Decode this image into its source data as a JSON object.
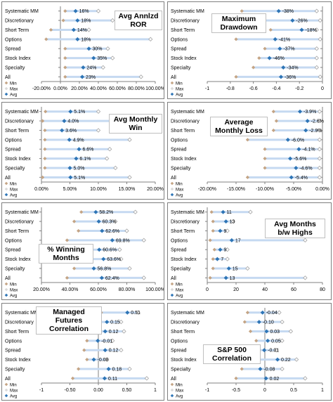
{
  "legend": {
    "min": "Min",
    "max": "Max",
    "avg": "Avg"
  },
  "colors": {
    "band": "#c5d9f1",
    "min": "#c4a484",
    "max": "#d0d0d0",
    "avg": "#2e75b6",
    "axis": "#808080"
  },
  "chart_data": [
    {
      "type": "dot-range",
      "title": "Avg Annlzd ROR",
      "categories": [
        "Systematic MM",
        "Discretionary",
        "Short Term",
        "Options",
        "Spread",
        "Stock Index",
        "Specialty",
        "All"
      ],
      "series": [
        {
          "name": "Min",
          "values": [
            0.05,
            0.03,
            -0.1,
            -0.15,
            0.05,
            0.05,
            0.05,
            0.05
          ]
        },
        {
          "name": "Max",
          "values": [
            0.4,
            0.55,
            0.3,
            0.95,
            0.5,
            0.55,
            0.45,
            0.85
          ]
        },
        {
          "name": "Avg",
          "values": [
            0.16,
            0.18,
            0.14,
            0.18,
            0.3,
            0.35,
            0.24,
            0.23
          ]
        }
      ],
      "labels": [
        "16%",
        "18%",
        "14%",
        "18%",
        "30%",
        "35%",
        "24%",
        "23%"
      ],
      "xlim": [
        -0.2,
        1.0
      ],
      "ticks": [
        "-20.00%",
        "0.00%",
        "20.00%",
        "40.00%",
        "60.00%",
        "80.00%",
        "100.00%"
      ]
    },
    {
      "type": "dot-range",
      "title": "Maximum Drawdown",
      "categories": [
        "Systematic MM",
        "Discretionary",
        "Short Term",
        "Options",
        "Spread",
        "Stock Index",
        "Specialty",
        "All"
      ],
      "series": [
        {
          "name": "Min",
          "values": [
            -0.7,
            -0.6,
            -0.45,
            -0.75,
            -0.5,
            -0.55,
            -0.6,
            -0.75
          ]
        },
        {
          "name": "Max",
          "values": [
            -0.05,
            -0.02,
            -0.05,
            -0.02,
            -0.05,
            -0.05,
            -0.05,
            -0.02
          ]
        },
        {
          "name": "Avg",
          "values": [
            -0.38,
            -0.26,
            -0.18,
            -0.41,
            -0.37,
            -0.46,
            -0.34,
            -0.36
          ]
        }
      ],
      "labels": [
        "-38%",
        "-26%",
        "-18%",
        "-41%",
        "-37%",
        "-46%",
        "-34%",
        "-36%"
      ],
      "xlim": [
        -1,
        0
      ],
      "ticks": [
        "-1",
        "-0.8",
        "-0.6",
        "-0.4",
        "-0.2",
        "0"
      ]
    },
    {
      "type": "dot-range",
      "title": "Avg Monthly Win",
      "categories": [
        "Systematic MM",
        "Discretionary",
        "Short Term",
        "Options",
        "Spread",
        "Stock Index",
        "Specialty",
        "All"
      ],
      "series": [
        {
          "name": "Min",
          "values": [
            0.007,
            0.002,
            0.006,
            0.006,
            0.006,
            0.006,
            0.006,
            0.002
          ]
        },
        {
          "name": "Max",
          "values": [
            0.1,
            0.13,
            0.1,
            0.155,
            0.12,
            0.115,
            0.13,
            0.155
          ]
        },
        {
          "name": "Avg",
          "values": [
            0.051,
            0.04,
            0.036,
            0.049,
            0.066,
            0.061,
            0.05,
            0.051
          ]
        }
      ],
      "labels": [
        "5.1%",
        "4.0%",
        "3.6%",
        "4.9%",
        "6.6%",
        "6.1%",
        "5.0%",
        "5.1%"
      ],
      "xlim": [
        0,
        0.2
      ],
      "ticks": [
        "0.00%",
        "5.00%",
        "10.00%",
        "15.00%",
        "20.00%"
      ]
    },
    {
      "type": "dot-range",
      "title": "Average Monthly Loss",
      "categories": [
        "Systematic MM",
        "Discretionary",
        "Short Term",
        "Options",
        "Spread",
        "Stock Index",
        "Specialty",
        "All"
      ],
      "series": [
        {
          "name": "Min",
          "values": [
            -0.085,
            -0.08,
            -0.085,
            -0.13,
            -0.1,
            -0.1,
            -0.1,
            -0.13
          ]
        },
        {
          "name": "Max",
          "values": [
            -0.005,
            -0.005,
            -0.005,
            -0.005,
            -0.005,
            -0.005,
            -0.005,
            -0.005
          ]
        },
        {
          "name": "Avg",
          "values": [
            -0.039,
            -0.026,
            -0.029,
            -0.06,
            -0.041,
            -0.056,
            -0.046,
            -0.054
          ]
        }
      ],
      "labels": [
        "-3.9%",
        "-2.6%",
        "-2.9%",
        "-6.0%",
        "-4.1%",
        "-5.6%",
        "-4.6%",
        "-5.4%"
      ],
      "xlim": [
        -0.2,
        0
      ],
      "ticks": [
        "-20.00%",
        "-15.00%",
        "-10.00%",
        "-5.00%",
        "0.00%"
      ]
    },
    {
      "type": "dot-range",
      "title": "% Winning Months",
      "categories": [
        "Systematic MM",
        "Discretionary",
        "Short Term",
        "Options",
        "Spread",
        "Stock Index",
        "Specialty",
        "All"
      ],
      "series": [
        {
          "name": "Min",
          "values": [
            0.48,
            0.43,
            0.46,
            0.38,
            0.44,
            0.45,
            0.43,
            0.38
          ]
        },
        {
          "name": "Max",
          "values": [
            0.86,
            0.72,
            0.8,
            0.92,
            0.75,
            0.76,
            0.82,
            0.92
          ]
        },
        {
          "name": "Avg",
          "values": [
            0.582,
            0.603,
            0.626,
            0.698,
            0.606,
            0.636,
            0.568,
            0.624
          ]
        }
      ],
      "labels": [
        "58.2%",
        "60.3%",
        "62.6%",
        "69.8%",
        "60.6%",
        "63.6%",
        "56.8%",
        "62.4%"
      ],
      "xlim": [
        0.2,
        1.0
      ],
      "ticks": [
        "20.00%",
        "40.00%",
        "60.00%",
        "80.00%",
        "100.00%"
      ]
    },
    {
      "type": "dot-range",
      "title": "Avg Months b/w Highs",
      "categories": [
        "Systematic MM",
        "Discretionary",
        "Short Term",
        "Options",
        "Spread",
        "Stock Index",
        "Specialty",
        "All"
      ],
      "series": [
        {
          "name": "Min",
          "values": [
            3,
            4,
            4,
            2,
            5,
            4,
            4,
            2
          ]
        },
        {
          "name": "Max",
          "values": [
            30,
            18,
            14,
            68,
            14,
            14,
            28,
            68
          ]
        },
        {
          "name": "Avg",
          "values": [
            11,
            13,
            9,
            17,
            9,
            7,
            15,
            13
          ]
        }
      ],
      "labels": [
        "11",
        "13",
        "9",
        "17",
        "9",
        "7",
        "15",
        "13"
      ],
      "xlim": [
        0,
        80
      ],
      "ticks": [
        "0",
        "20",
        "40",
        "60",
        "80"
      ]
    },
    {
      "type": "dot-range",
      "title": "Managed Futures Correlation",
      "categories": [
        "Systematic MM",
        "Discretionary",
        "Short Term",
        "Options",
        "Spread",
        "Stock Index",
        "Specialty",
        "All"
      ],
      "series": [
        {
          "name": "Min",
          "values": [
            0.05,
            -0.1,
            -0.15,
            -0.2,
            -0.25,
            -0.2,
            -0.35,
            -0.45
          ]
        },
        {
          "name": "Max",
          "values": [
            0.7,
            0.4,
            0.45,
            0.25,
            0.4,
            0.15,
            0.55,
            0.85
          ]
        },
        {
          "name": "Avg",
          "values": [
            0.51,
            0.15,
            0.12,
            -0.01,
            0.12,
            -0.08,
            0.18,
            0.11
          ]
        }
      ],
      "labels": [
        "0.51",
        "0.15",
        "0.12",
        "-0.01",
        "0.12",
        "-0.08",
        "0.18",
        "0.11"
      ],
      "xlim": [
        -1,
        1
      ],
      "ticks": [
        "-1",
        "-0.50",
        "0.00",
        "0.50",
        "1"
      ]
    },
    {
      "type": "dot-range",
      "title": "S&P 500 Correlation",
      "categories": [
        "Systematic MM",
        "Discretionary",
        "Short Term",
        "Options",
        "Spread",
        "Stock Index",
        "Specialty",
        "All"
      ],
      "series": [
        {
          "name": "Min",
          "values": [
            -0.3,
            -0.35,
            -0.25,
            -0.15,
            -0.2,
            -0.3,
            -0.4,
            -0.5
          ]
        },
        {
          "name": "Max",
          "values": [
            0.25,
            0.3,
            0.45,
            0.3,
            0.2,
            0.55,
            0.3,
            0.7
          ]
        },
        {
          "name": "Avg",
          "values": [
            -0.04,
            -0.1,
            0.03,
            0.05,
            -0.01,
            0.22,
            -0.08,
            0.02
          ]
        }
      ],
      "labels": [
        "-0.04",
        "-0.10",
        "0.03",
        "0.05",
        "-0.01",
        "0.22",
        "-0.08",
        "0.02"
      ],
      "xlim": [
        -1,
        1
      ],
      "ticks": [
        "-1",
        "-0.5",
        "0",
        "0.5",
        "1"
      ]
    }
  ]
}
